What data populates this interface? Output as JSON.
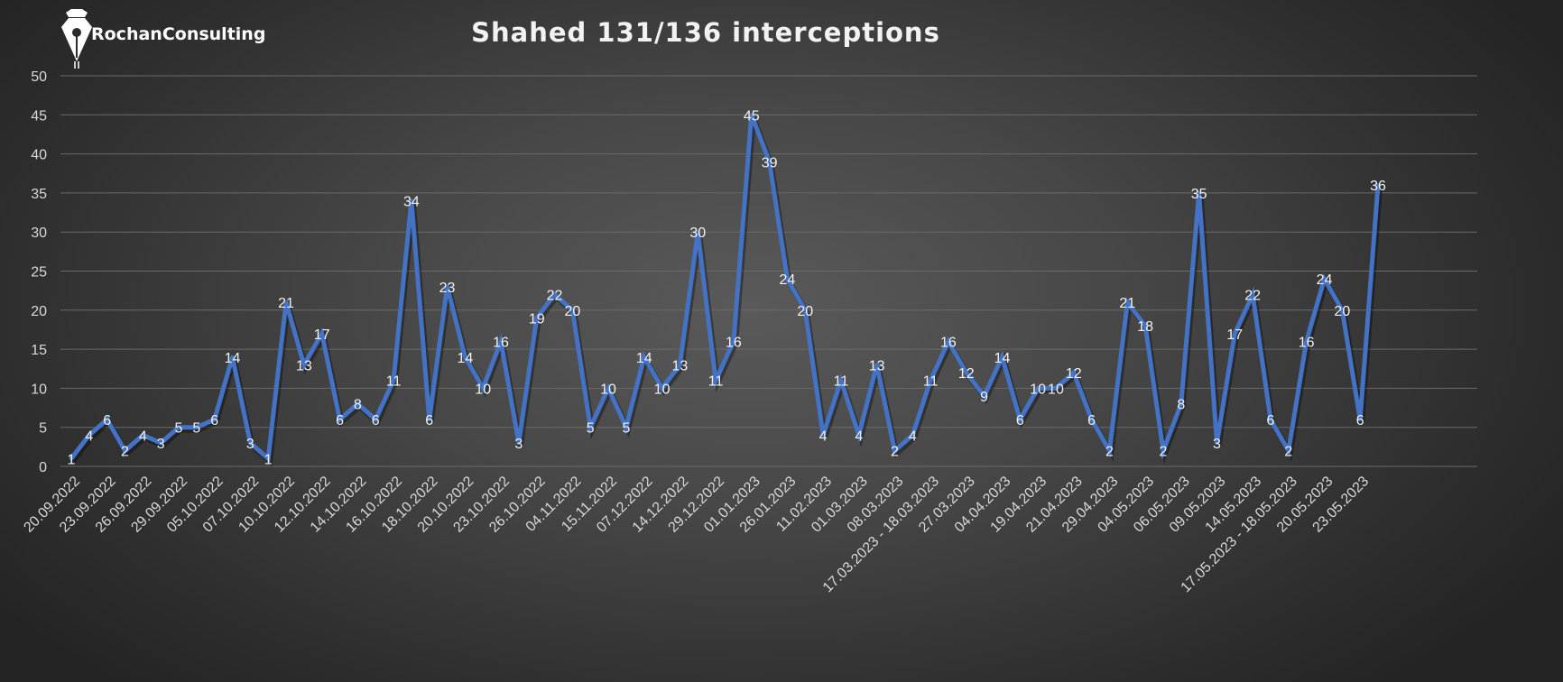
{
  "brand": {
    "name": "RochanConsulting",
    "logo_icon": "pen-nib-shield-logo"
  },
  "chart_data": {
    "type": "line",
    "title": "Shahed 131/136 interceptions",
    "xlabel": "",
    "ylabel": "",
    "ylim": [
      0,
      50
    ],
    "yticks": [
      0,
      5,
      10,
      15,
      20,
      25,
      30,
      35,
      40,
      45,
      50
    ],
    "grid": true,
    "legend": "none",
    "line_color": "#4472C4",
    "xtick_labels": [
      "20.09.2022",
      "23.09.2022",
      "26.09.2022",
      "29.09.2022",
      "05.10.2022",
      "07.10.2022",
      "10.10.2022",
      "12.10.2022",
      "14.10.2022",
      "16.10.2022",
      "18.10.2022",
      "20.10.2022",
      "23.10.2022",
      "26.10.2022",
      "04.11.2022",
      "15.11.2022",
      "07.12.2022",
      "14.12.2022",
      "29.12.2022",
      "01.01.2023",
      "26.01.2023",
      "11.02.2023",
      "01.03.2023",
      "08.03.2023",
      "17.03.2023 - 18.03.2023",
      "27.03.2023",
      "04.04.2023",
      "19.04.2023",
      "21.04.2023",
      "29.04.2023",
      "04.05.2023",
      "06.05.2023",
      "09.05.2023",
      "14.05.2023",
      "17.05.2023 - 18.05.2023",
      "20.05.2023",
      "23.05.2023"
    ],
    "series": [
      {
        "values": [
          1,
          4,
          6,
          2,
          4,
          3,
          5,
          5,
          6,
          14,
          3,
          1,
          21,
          13,
          17,
          6,
          8,
          6,
          11,
          34,
          6,
          23,
          14,
          10,
          16,
          3,
          19,
          22,
          20,
          5,
          10,
          5,
          14,
          10,
          13,
          30,
          11,
          16,
          45,
          39,
          24,
          20,
          4,
          11,
          4,
          13,
          2,
          4,
          11,
          16,
          12,
          9,
          14,
          6,
          10,
          10,
          12,
          6,
          2,
          21,
          18,
          2,
          8,
          35,
          3,
          17,
          22,
          6,
          2,
          16,
          24,
          20,
          6,
          36
        ]
      }
    ]
  }
}
